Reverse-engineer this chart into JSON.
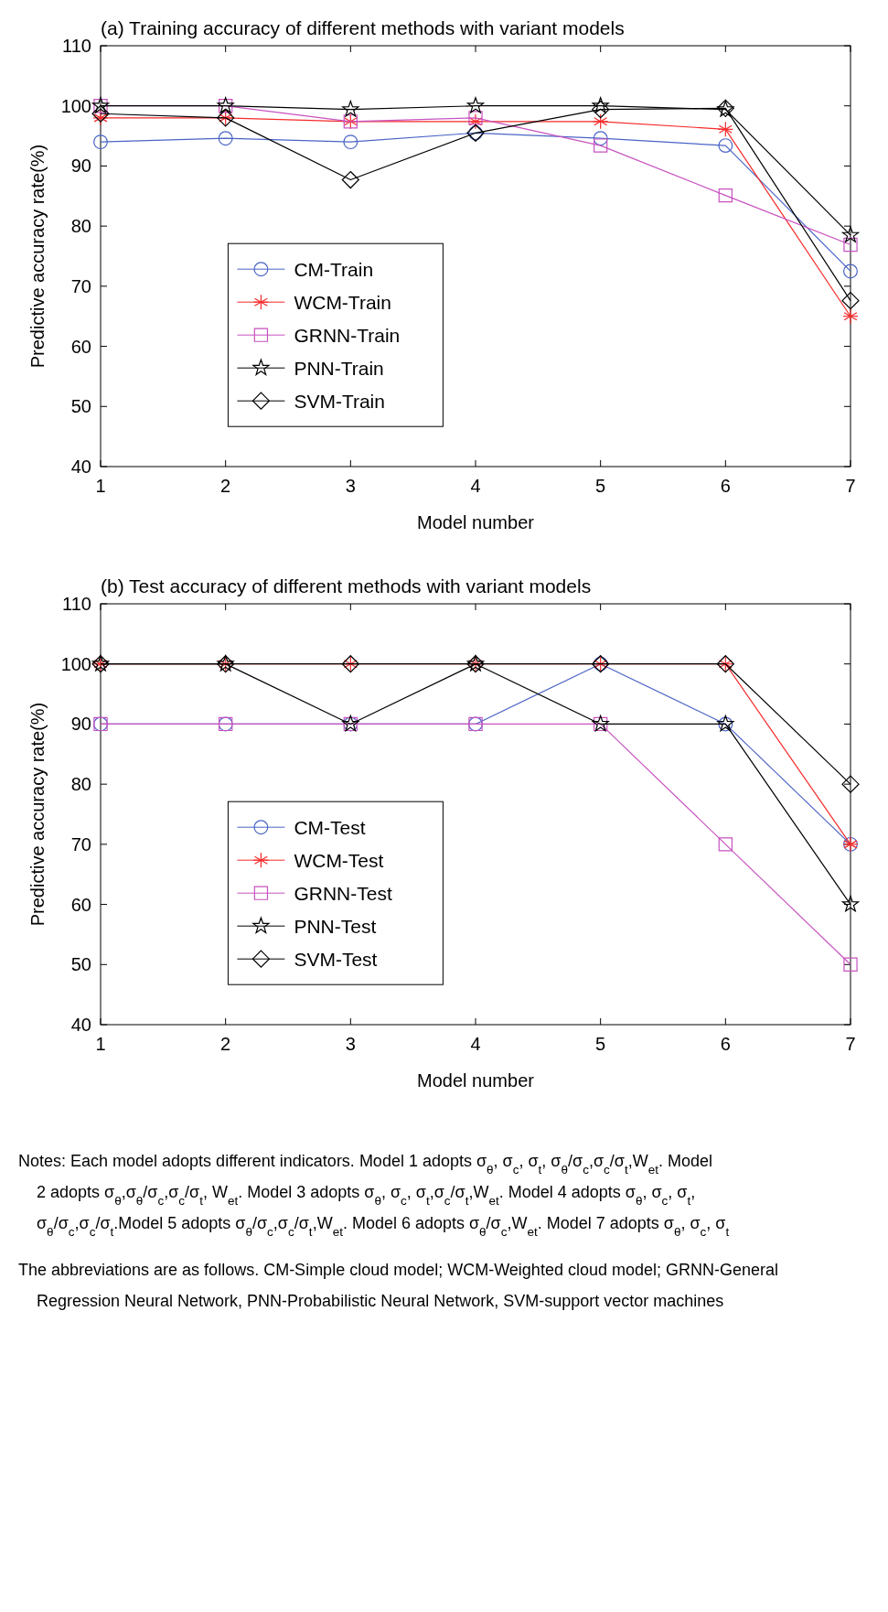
{
  "chart_data": [
    {
      "type": "line",
      "title": "(a) Training accuracy of different methods with variant models",
      "xlabel": "Model number",
      "ylabel": "Predictive accuracy rate(%)",
      "x": [
        1,
        2,
        3,
        4,
        5,
        6,
        7
      ],
      "xlim": [
        1,
        7
      ],
      "xticks": [
        1,
        2,
        3,
        4,
        5,
        6,
        7
      ],
      "ylim": [
        40,
        110
      ],
      "yticks": [
        40,
        50,
        60,
        70,
        80,
        90,
        100,
        110
      ],
      "legend": "bottom left",
      "series": [
        {
          "name": "CM-Train",
          "color": "#4a63c6",
          "marker": "circle",
          "values": [
            94,
            94.6,
            94,
            95.5,
            94.6,
            93.4,
            72.5
          ]
        },
        {
          "name": "WCM-Train",
          "color": "#f52a2a",
          "marker": "cross",
          "values": [
            98,
            98,
            97.4,
            97.4,
            97.4,
            96.1,
            65
          ]
        },
        {
          "name": "GRNN-Train",
          "color": "#c852c0",
          "marker": "square",
          "values": [
            100,
            100,
            97.4,
            98,
            93.4,
            85.1,
            76.9
          ]
        },
        {
          "name": "PNN-Train",
          "color": "#000000",
          "marker": "star",
          "values": [
            100,
            100,
            99.4,
            100,
            100,
            99.4,
            78.5
          ]
        },
        {
          "name": "SVM-Train",
          "color": "#000000",
          "marker": "diamond",
          "values": [
            98.7,
            98,
            87.7,
            95.5,
            99.4,
            99.6,
            67.6
          ]
        }
      ],
      "annotations": [
        "Notes: Each model adopts different indicators. Model 1 adopts σ$_{θ}$, σ$_{c}$, σ$_{t}$, σ$_{θ}$/σ$_{c}$,σ$_{c}$/σ$_{t}$,W$_{et}$. Model 2 adopts σ$_{θ}$,σ$_{θ}$/σ$_{c}$,σ$_{c}$/σ$_{t}$, W$_{et}$. Model 3 adopts σ$_{θ}$, σ$_{c}$, σ$_{t}$,σ$_{c}$/σ$_{t}$,W$_{et}$. Model 4 adopts σ$_{θ}$, σ$_{c}$, σ$_{t}$, σ$_{θ}$/σ$_{c}$,σ$_{c}$/σ$_{t}$.Model 5 adopts σ$_{θ}$/σ$_{c}$,σ$_{c}$/σ$_{t}$,W$_{et}$. Model 6 adopts σ$_{θ}$/σ$_{c}$,W$_{et}$. Model 7 adopts σ$_{θ}$, σ$_{c}$, σ$_{t}$",
        "The abbreviations are as follows. CM-Simple cloud model; WCM-Weighted cloud model; GRNN-General Regression Neural Network, PNN-Probabilistic Neural Network, SVM-support vector machines"
      ]
    },
    {
      "type": "line",
      "title": "(b) Test accuracy of different methods with variant models",
      "xlabel": "Model number",
      "ylabel": "Predictive accuracy rate(%)",
      "x": [
        1,
        2,
        3,
        4,
        5,
        6,
        7
      ],
      "xlim": [
        1,
        7
      ],
      "xticks": [
        1,
        2,
        3,
        4,
        5,
        6,
        7
      ],
      "ylim": [
        40,
        110
      ],
      "yticks": [
        40,
        50,
        60,
        70,
        80,
        90,
        100,
        110
      ],
      "legend": "bottom left",
      "series": [
        {
          "name": "CM-Test",
          "color": "#4a63c6",
          "marker": "circle",
          "values": [
            90,
            90,
            90,
            90,
            100,
            90,
            70
          ]
        },
        {
          "name": "WCM-Test",
          "color": "#f52a2a",
          "marker": "cross",
          "values": [
            100,
            100,
            100,
            100,
            100,
            100,
            70
          ]
        },
        {
          "name": "GRNN-Test",
          "color": "#c852c0",
          "marker": "square",
          "values": [
            90,
            90,
            90,
            90,
            90,
            70,
            50
          ]
        },
        {
          "name": "PNN-Test",
          "color": "#000000",
          "marker": "star",
          "values": [
            100,
            100,
            90,
            100,
            90,
            90,
            60
          ]
        },
        {
          "name": "SVM-Test",
          "color": "#000000",
          "marker": "diamond",
          "values": [
            100,
            100,
            100,
            100,
            100,
            100,
            80
          ]
        }
      ]
    }
  ]
}
